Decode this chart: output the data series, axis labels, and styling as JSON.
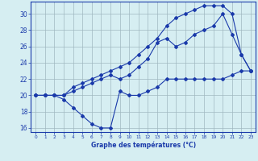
{
  "line1_x": [
    0,
    1,
    2,
    3,
    4,
    5,
    6,
    7,
    8,
    9,
    10,
    11,
    12,
    13,
    14,
    15,
    16,
    17,
    18,
    19,
    20,
    21,
    22,
    23
  ],
  "line1_y": [
    20,
    20,
    20,
    19.5,
    18.5,
    17.5,
    16.5,
    16,
    16,
    20.5,
    20,
    20,
    20.5,
    21,
    22,
    22,
    22,
    22,
    22,
    22,
    22,
    22.5,
    23,
    23
  ],
  "line2_x": [
    0,
    1,
    2,
    3,
    4,
    5,
    6,
    7,
    8,
    9,
    10,
    11,
    12,
    13,
    14,
    15,
    16,
    17,
    18,
    19,
    20,
    21,
    22,
    23
  ],
  "line2_y": [
    20,
    20,
    20,
    20,
    20.5,
    21,
    21.5,
    22,
    22.5,
    22,
    22.5,
    23.5,
    24.5,
    26.5,
    27,
    26,
    26.5,
    27.5,
    28,
    28.5,
    30,
    27.5,
    25,
    23
  ],
  "line3_x": [
    0,
    1,
    2,
    3,
    4,
    5,
    6,
    7,
    8,
    9,
    10,
    11,
    12,
    13,
    14,
    15,
    16,
    17,
    18,
    19,
    20,
    21,
    22,
    23
  ],
  "line3_y": [
    20,
    20,
    20,
    20,
    21,
    21.5,
    22,
    22.5,
    23,
    23.5,
    24,
    25,
    26,
    27,
    28.5,
    29.5,
    30,
    30.5,
    31,
    31,
    31,
    30,
    25,
    23
  ],
  "xlabel": "Graphe des températures (°C)",
  "line_color": "#1a3aaa",
  "bg_color": "#d6eef2",
  "grid_color": "#a0b8c0",
  "axis_color": "#1a3aaa",
  "xlim": [
    -0.5,
    23.5
  ],
  "ylim": [
    15.5,
    31.5
  ],
  "yticks": [
    16,
    18,
    20,
    22,
    24,
    26,
    28,
    30
  ],
  "xticks": [
    0,
    1,
    2,
    3,
    4,
    5,
    6,
    7,
    8,
    9,
    10,
    11,
    12,
    13,
    14,
    15,
    16,
    17,
    18,
    19,
    20,
    21,
    22,
    23
  ],
  "xtick_labels": [
    "0",
    "1",
    "2",
    "3",
    "4",
    "5",
    "6",
    "7",
    "8",
    "9",
    "10",
    "11",
    "12",
    "13",
    "14",
    "15",
    "16",
    "17",
    "18",
    "19",
    "20",
    "21",
    "22",
    "23"
  ]
}
